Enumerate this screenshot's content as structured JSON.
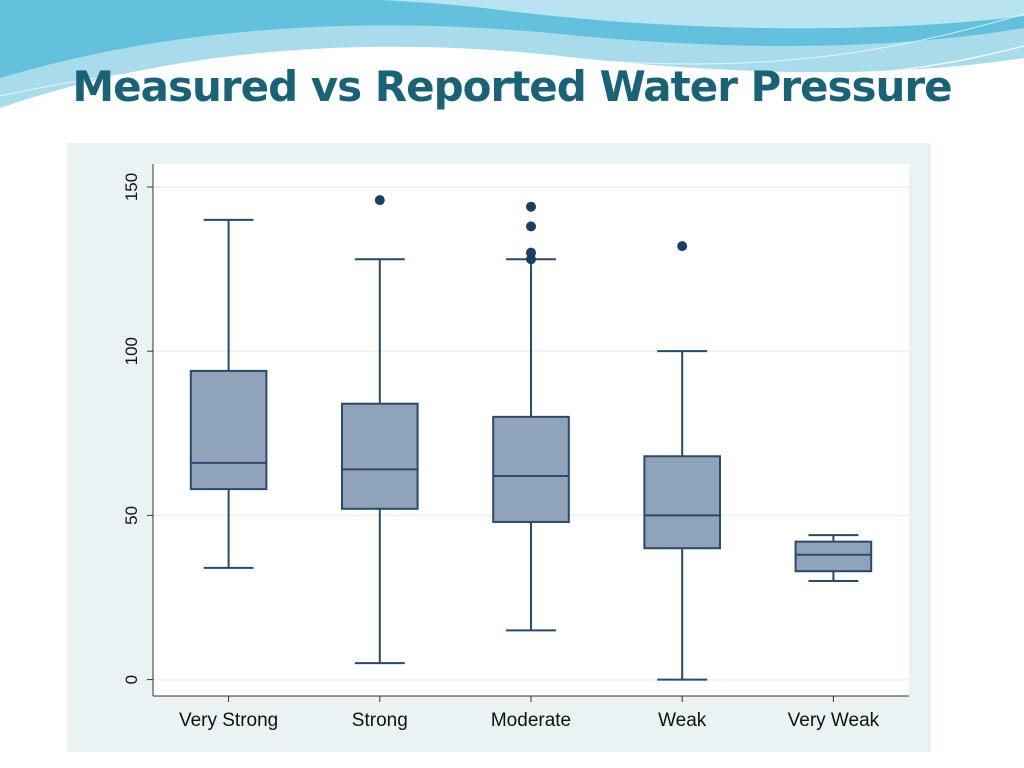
{
  "slide": {
    "title": "Measured vs Reported Water Pressure"
  },
  "colors": {
    "title": "#1a6276",
    "box_fill": "#8fa3ba",
    "box_stroke": "#2a4a6b",
    "outlier": "#1a3f66",
    "grid": "#eef3f5",
    "panel": "#eaf2f3"
  },
  "chart_data": {
    "type": "box",
    "title": "",
    "xlabel": "",
    "ylabel": "",
    "categories": [
      "Very Strong",
      "Strong",
      "Moderate",
      "Weak",
      "Very Weak"
    ],
    "yticks": [
      "0",
      "50",
      "100",
      "150"
    ],
    "ylim": [
      -5,
      157
    ],
    "grid": true,
    "boxes": [
      {
        "category": "Very Strong",
        "whisker_low": 34,
        "q1": 58,
        "median": 66,
        "q3": 94,
        "whisker_high": 140,
        "outliers": []
      },
      {
        "category": "Strong",
        "whisker_low": 5,
        "q1": 52,
        "median": 64,
        "q3": 84,
        "whisker_high": 128,
        "outliers": [
          146
        ]
      },
      {
        "category": "Moderate",
        "whisker_low": 15,
        "q1": 48,
        "median": 62,
        "q3": 80,
        "whisker_high": 128,
        "outliers": [
          128,
          130,
          138,
          144
        ]
      },
      {
        "category": "Weak",
        "whisker_low": 0,
        "q1": 40,
        "median": 50,
        "q3": 68,
        "whisker_high": 100,
        "outliers": [
          132
        ]
      },
      {
        "category": "Very Weak",
        "whisker_low": 30,
        "q1": 33,
        "median": 38,
        "q3": 42,
        "whisker_high": 44,
        "outliers": []
      }
    ]
  }
}
